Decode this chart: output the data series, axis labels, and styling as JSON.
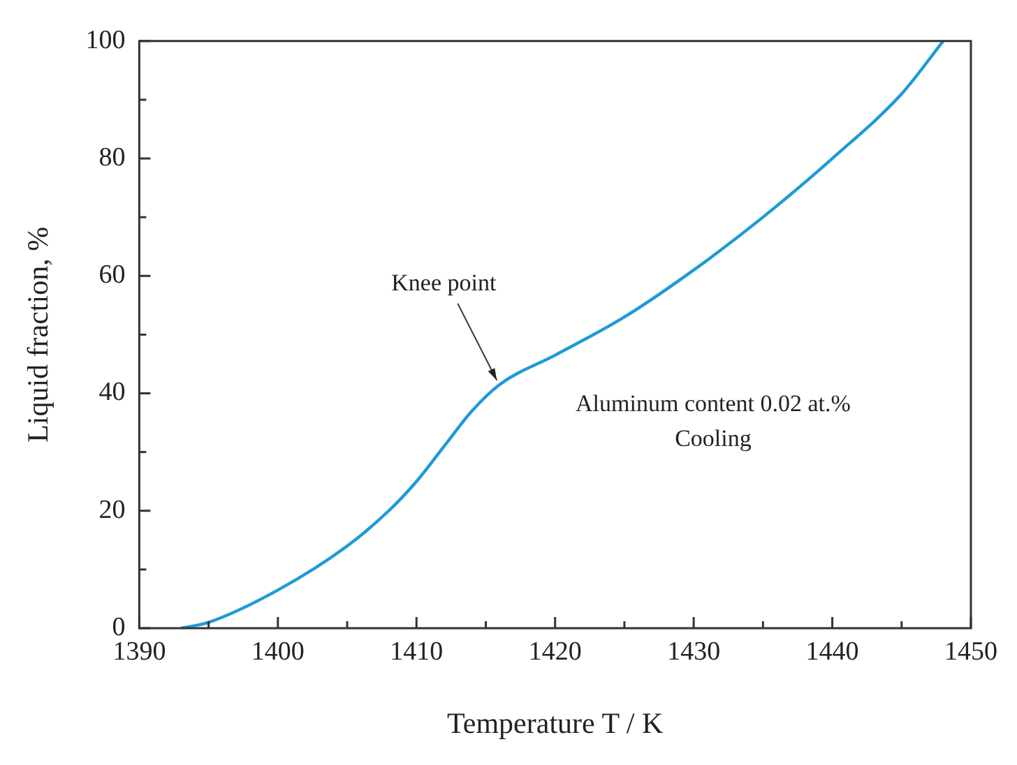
{
  "chart_data": {
    "type": "line",
    "xlabel": "Temperature T / K",
    "ylabel": "Liquid fraction, %",
    "x": [
      1393,
      1395,
      1400,
      1405,
      1408,
      1410,
      1412,
      1414,
      1416,
      1420,
      1425,
      1430,
      1435,
      1440,
      1445,
      1448
    ],
    "series": [
      {
        "color": "#1e9ad6",
        "values": [
          0,
          1,
          6.5,
          14,
          20,
          25,
          31,
          37,
          41.5,
          46.5,
          53,
          61,
          70,
          80,
          91,
          100
        ]
      }
    ],
    "xlim": [
      1390,
      1450
    ],
    "xticks": [
      1390,
      {
        "value": 1395,
        "label": null
      },
      1400,
      {
        "value": 1405,
        "label": null
      },
      1410,
      {
        "value": 1415,
        "label": null
      },
      1420,
      {
        "value": 1425,
        "label": null
      },
      1430,
      {
        "value": 1435,
        "label": null
      },
      1440,
      {
        "value": 1445,
        "label": null
      },
      1450
    ],
    "ylim": [
      0,
      100
    ],
    "yticks": [
      0,
      {
        "value": 10,
        "label": null
      },
      20,
      {
        "value": 30,
        "label": null
      },
      40,
      {
        "value": 50,
        "label": null
      },
      60,
      {
        "value": 70,
        "label": null
      },
      80,
      {
        "value": 90,
        "label": null
      },
      100
    ],
    "annotations": [
      {
        "text": "Knee point",
        "x": 1416,
        "y": 41.5
      },
      "Aluminum content 0.02 at.%",
      "Cooling"
    ],
    "grid": false,
    "legend": false,
    "marker": "none",
    "line_style": "solid"
  }
}
